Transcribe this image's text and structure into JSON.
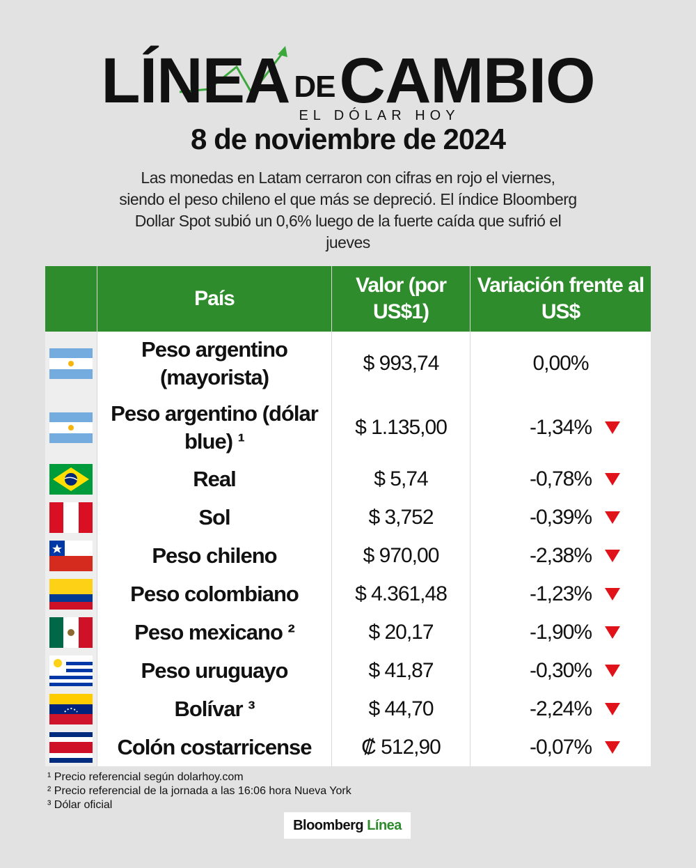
{
  "header": {
    "logo_word1": "LÍNEA",
    "logo_de": "DE",
    "logo_word2": "CAMBIO",
    "logo_sub": "EL DÓLAR HOY",
    "date": "8 de noviembre de 2024",
    "intro": "Las monedas en Latam cerraron con cifras en rojo el viernes, siendo el peso chileno el que más se depreció. El índice Bloomberg Dollar Spot subió un 0,6% luego de la fuerte caída que sufrió el jueves"
  },
  "table": {
    "headers": [
      "País",
      "Valor (por US$1)",
      "Variación frente al US$"
    ],
    "rows": [
      {
        "flag": "argentina-flag",
        "country": "Peso argentino (mayorista)",
        "value": "$ 993,74",
        "change": "0,00%",
        "down": false
      },
      {
        "flag": "argentina-flag",
        "country": "Peso argentino (dólar blue) ¹",
        "value": "$ 1.135,00",
        "change": "-1,34%",
        "down": true
      },
      {
        "flag": "brazil-flag",
        "country": "Real",
        "value": "$ 5,74",
        "change": "-0,78%",
        "down": true
      },
      {
        "flag": "peru-flag",
        "country": "Sol",
        "value": "$ 3,752",
        "change": "-0,39%",
        "down": true
      },
      {
        "flag": "chile-flag",
        "country": "Peso chileno",
        "value": "$ 970,00",
        "change": "-2,38%",
        "down": true
      },
      {
        "flag": "colombia-flag",
        "country": "Peso colombiano",
        "value": "$ 4.361,48",
        "change": "-1,23%",
        "down": true
      },
      {
        "flag": "mexico-flag",
        "country": "Peso mexicano ²",
        "value": "$ 20,17",
        "change": "-1,90%",
        "down": true
      },
      {
        "flag": "uruguay-flag",
        "country": "Peso uruguayo",
        "value": "$ 41,87",
        "change": "-0,30%",
        "down": true
      },
      {
        "flag": "venezuela-flag",
        "country": "Bolívar ³",
        "value": "$ 44,70",
        "change": "-2,24%",
        "down": true
      },
      {
        "flag": "costa-rica-flag",
        "country": "Colón costarricense",
        "value": "₡ 512,90",
        "change": "-0,07%",
        "down": true
      }
    ]
  },
  "notes": [
    "¹ Precio referencial según dolarhoy.com",
    "² Precio referencial de la jornada a las 16:06 hora Nueva York",
    "³ Dólar oficial"
  ],
  "brand": {
    "part1": "Bloomberg",
    "part2": "Línea"
  },
  "colors": {
    "green": "#2f8c2d",
    "down_arrow": "#e0131b"
  }
}
